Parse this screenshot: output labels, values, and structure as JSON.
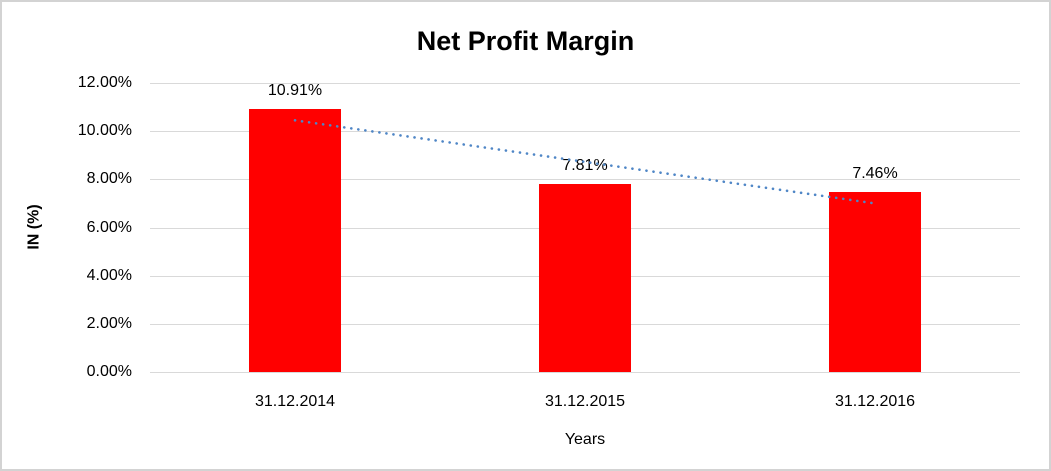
{
  "frame": {
    "background": "#FFFFFF",
    "border_color": "#D3D3D3"
  },
  "chart_data": {
    "type": "bar",
    "title": "Net Profit Margin",
    "xlabel": "Years",
    "ylabel": "IN (%)",
    "categories": [
      "31.12.2014",
      "31.12.2015",
      "31.12.2016"
    ],
    "series": [
      {
        "name": "Net Profit Margin",
        "values": [
          10.91,
          7.81,
          7.46
        ]
      }
    ],
    "data_labels": [
      "10.91%",
      "7.81%",
      "7.46%"
    ],
    "y_ticks": [
      "12.00%",
      "10.00%",
      "8.00%",
      "6.00%",
      "4.00%",
      "2.00%",
      "0.00%"
    ],
    "y_tick_values": [
      12,
      10,
      8,
      6,
      4,
      2,
      0
    ],
    "ylim": [
      0,
      12
    ],
    "grid": "horizontal",
    "gridline_color": "#D9D9D9",
    "legend": "none",
    "bar_color": "#FF0000",
    "trendline": {
      "type": "linear",
      "style": "dotted",
      "color": "#4F86C6",
      "start_value": 10.45,
      "end_value": 7.0
    }
  }
}
